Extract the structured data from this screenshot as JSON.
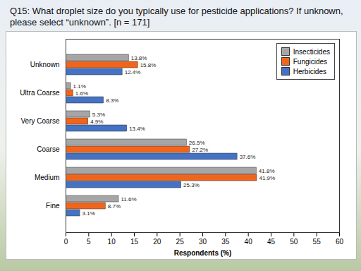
{
  "chart_data": {
    "type": "bar",
    "orientation": "horizontal",
    "title": "Q15: What droplet size do you typically use for pesticide applications? If unknown, please select “unknown”. [n = 171]",
    "x_label": "Respondents (%)",
    "categories": [
      "Unknown",
      "Ultra Coarse",
      "Very Coarse",
      "Coarse",
      "Medium",
      "Fine"
    ],
    "series": [
      {
        "name": "Insecticides",
        "color": "#a6a6a6",
        "values": [
          13.8,
          1.1,
          5.3,
          26.5,
          41.8,
          11.6
        ],
        "value_labels": [
          "13.8%",
          "1.1%",
          "5.3%",
          "26.5%",
          "41.8%",
          "11.6%"
        ]
      },
      {
        "name": "Fungicides",
        "color": "#f0651c",
        "values": [
          15.8,
          1.6,
          4.9,
          27.2,
          41.9,
          8.7
        ],
        "value_labels": [
          "15.8%",
          "1.6%",
          "4.9%",
          "27.2%",
          "41.9%",
          "8.7%"
        ]
      },
      {
        "name": "Herbicides",
        "color": "#4472c4",
        "values": [
          12.4,
          8.3,
          13.4,
          37.6,
          25.3,
          3.1
        ],
        "value_labels": [
          "12.4%",
          "8.3%",
          "13.4%",
          "37.6%",
          "25.3%",
          "3.1%"
        ]
      }
    ],
    "xlim": [
      0,
      60
    ],
    "xticks": [
      0,
      5,
      10,
      15,
      20,
      25,
      30,
      35,
      40,
      45,
      50,
      55,
      60
    ],
    "grid": false,
    "legend": "top-right",
    "data_labels": true
  }
}
